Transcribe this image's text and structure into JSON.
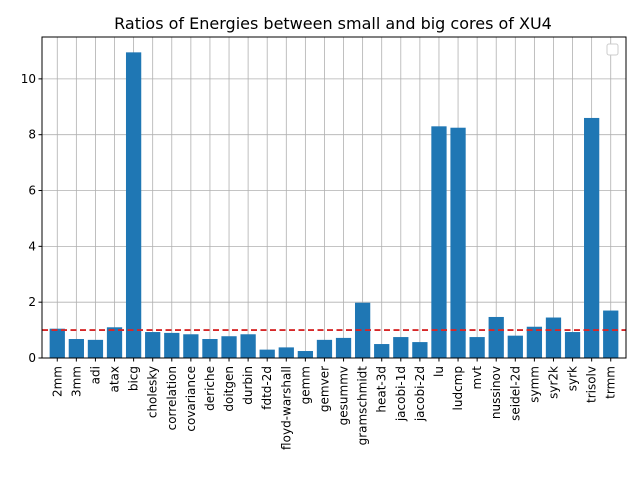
{
  "chart_data": {
    "type": "bar",
    "title": "Ratios of Energies between small and big cores of XU4",
    "xlabel": "",
    "ylabel": "",
    "ylim": [
      0,
      11.5
    ],
    "yticks": [
      0,
      2,
      4,
      6,
      8,
      10
    ],
    "grid": true,
    "legend": "top-right",
    "legend_entries": [],
    "bar_color": "#1f77b4",
    "reference_line": {
      "y": 1.0,
      "color": "#d62728",
      "style": "dashed"
    },
    "categories": [
      "2mm",
      "3mm",
      "adi",
      "atax",
      "bicg",
      "cholesky",
      "correlation",
      "covariance",
      "deriche",
      "doitgen",
      "durbin",
      "fdtd-2d",
      "floyd-warshall",
      "gemm",
      "gemver",
      "gesummv",
      "gramschmidt",
      "heat-3d",
      "jacobi-1d",
      "jacobi-2d",
      "lu",
      "ludcmp",
      "mvt",
      "nussinov",
      "seidel-2d",
      "symm",
      "syr2k",
      "syrk",
      "trisolv",
      "trmm"
    ],
    "values": [
      1.05,
      0.68,
      0.65,
      1.1,
      10.95,
      0.93,
      0.9,
      0.85,
      0.68,
      0.78,
      0.85,
      0.3,
      0.38,
      0.25,
      0.65,
      0.72,
      1.98,
      0.5,
      0.75,
      0.57,
      8.3,
      8.25,
      0.75,
      1.47,
      0.8,
      1.12,
      1.45,
      0.93,
      8.6,
      1.7
    ]
  }
}
